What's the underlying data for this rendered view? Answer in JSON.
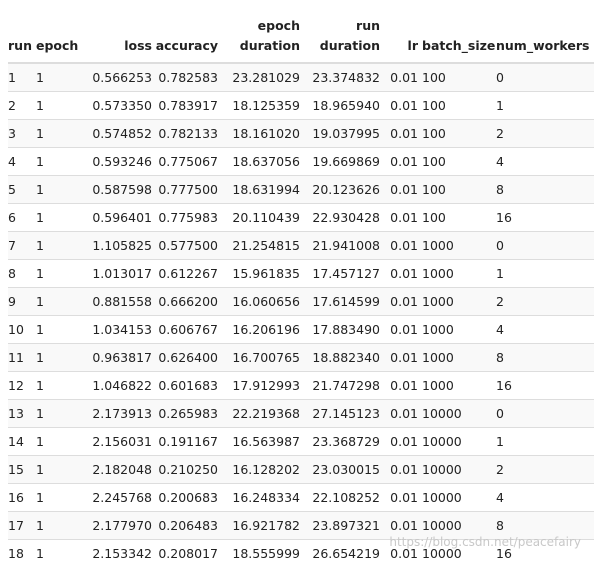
{
  "table": {
    "headers": {
      "run": "run",
      "epoch": "epoch",
      "loss": "loss",
      "accuracy": "accuracy",
      "epoch_duration": "epoch duration",
      "run_duration": "run duration",
      "lr": "lr",
      "batch_size": "batch_size",
      "num_workers": "num_workers"
    },
    "rows": [
      {
        "run": "1",
        "epoch": "1",
        "loss": "0.566253",
        "accuracy": "0.782583",
        "epoch_duration": "23.281029",
        "run_duration": "23.374832",
        "lr": "0.01",
        "batch_size": "100",
        "num_workers": "0"
      },
      {
        "run": "2",
        "epoch": "1",
        "loss": "0.573350",
        "accuracy": "0.783917",
        "epoch_duration": "18.125359",
        "run_duration": "18.965940",
        "lr": "0.01",
        "batch_size": "100",
        "num_workers": "1"
      },
      {
        "run": "3",
        "epoch": "1",
        "loss": "0.574852",
        "accuracy": "0.782133",
        "epoch_duration": "18.161020",
        "run_duration": "19.037995",
        "lr": "0.01",
        "batch_size": "100",
        "num_workers": "2"
      },
      {
        "run": "4",
        "epoch": "1",
        "loss": "0.593246",
        "accuracy": "0.775067",
        "epoch_duration": "18.637056",
        "run_duration": "19.669869",
        "lr": "0.01",
        "batch_size": "100",
        "num_workers": "4"
      },
      {
        "run": "5",
        "epoch": "1",
        "loss": "0.587598",
        "accuracy": "0.777500",
        "epoch_duration": "18.631994",
        "run_duration": "20.123626",
        "lr": "0.01",
        "batch_size": "100",
        "num_workers": "8"
      },
      {
        "run": "6",
        "epoch": "1",
        "loss": "0.596401",
        "accuracy": "0.775983",
        "epoch_duration": "20.110439",
        "run_duration": "22.930428",
        "lr": "0.01",
        "batch_size": "100",
        "num_workers": "16"
      },
      {
        "run": "7",
        "epoch": "1",
        "loss": "1.105825",
        "accuracy": "0.577500",
        "epoch_duration": "21.254815",
        "run_duration": "21.941008",
        "lr": "0.01",
        "batch_size": "1000",
        "num_workers": "0"
      },
      {
        "run": "8",
        "epoch": "1",
        "loss": "1.013017",
        "accuracy": "0.612267",
        "epoch_duration": "15.961835",
        "run_duration": "17.457127",
        "lr": "0.01",
        "batch_size": "1000",
        "num_workers": "1"
      },
      {
        "run": "9",
        "epoch": "1",
        "loss": "0.881558",
        "accuracy": "0.666200",
        "epoch_duration": "16.060656",
        "run_duration": "17.614599",
        "lr": "0.01",
        "batch_size": "1000",
        "num_workers": "2"
      },
      {
        "run": "10",
        "epoch": "1",
        "loss": "1.034153",
        "accuracy": "0.606767",
        "epoch_duration": "16.206196",
        "run_duration": "17.883490",
        "lr": "0.01",
        "batch_size": "1000",
        "num_workers": "4"
      },
      {
        "run": "11",
        "epoch": "1",
        "loss": "0.963817",
        "accuracy": "0.626400",
        "epoch_duration": "16.700765",
        "run_duration": "18.882340",
        "lr": "0.01",
        "batch_size": "1000",
        "num_workers": "8"
      },
      {
        "run": "12",
        "epoch": "1",
        "loss": "1.046822",
        "accuracy": "0.601683",
        "epoch_duration": "17.912993",
        "run_duration": "21.747298",
        "lr": "0.01",
        "batch_size": "1000",
        "num_workers": "16"
      },
      {
        "run": "13",
        "epoch": "1",
        "loss": "2.173913",
        "accuracy": "0.265983",
        "epoch_duration": "22.219368",
        "run_duration": "27.145123",
        "lr": "0.01",
        "batch_size": "10000",
        "num_workers": "0"
      },
      {
        "run": "14",
        "epoch": "1",
        "loss": "2.156031",
        "accuracy": "0.191167",
        "epoch_duration": "16.563987",
        "run_duration": "23.368729",
        "lr": "0.01",
        "batch_size": "10000",
        "num_workers": "1"
      },
      {
        "run": "15",
        "epoch": "1",
        "loss": "2.182048",
        "accuracy": "0.210250",
        "epoch_duration": "16.128202",
        "run_duration": "23.030015",
        "lr": "0.01",
        "batch_size": "10000",
        "num_workers": "2"
      },
      {
        "run": "16",
        "epoch": "1",
        "loss": "2.245768",
        "accuracy": "0.200683",
        "epoch_duration": "16.248334",
        "run_duration": "22.108252",
        "lr": "0.01",
        "batch_size": "10000",
        "num_workers": "4"
      },
      {
        "run": "17",
        "epoch": "1",
        "loss": "2.177970",
        "accuracy": "0.206483",
        "epoch_duration": "16.921782",
        "run_duration": "23.897321",
        "lr": "0.01",
        "batch_size": "10000",
        "num_workers": "8"
      },
      {
        "run": "18",
        "epoch": "1",
        "loss": "2.153342",
        "accuracy": "0.208017",
        "epoch_duration": "18.555999",
        "run_duration": "26.654219",
        "lr": "0.01",
        "batch_size": "10000",
        "num_workers": "16"
      }
    ]
  },
  "watermark": "https://blog.csdn.net/peacefairy"
}
